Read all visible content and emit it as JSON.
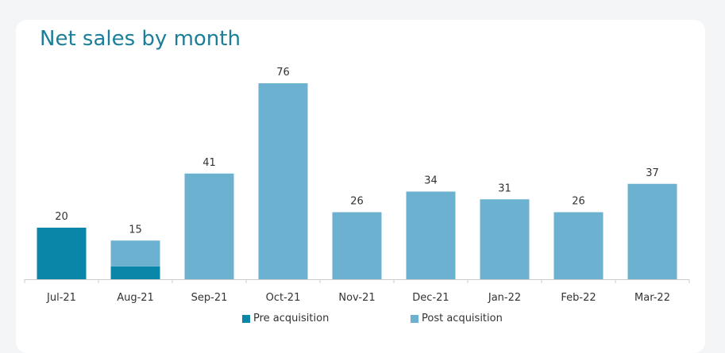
{
  "chart_data": {
    "type": "bar",
    "stacked": true,
    "title": "Net sales by month",
    "categories": [
      "Jul-21",
      "Aug-21",
      "Sep-21",
      "Oct-21",
      "Nov-21",
      "Dec-21",
      "Jan-22",
      "Feb-22",
      "Mar-22"
    ],
    "series": [
      {
        "name": "Pre acquisition",
        "color": "#0a86a8",
        "values": [
          20,
          5,
          0,
          0,
          0,
          0,
          0,
          0,
          0
        ]
      },
      {
        "name": "Post acquisition",
        "color": "#6cb1cf",
        "values": [
          0,
          10,
          41,
          76,
          26,
          34,
          31,
          26,
          37
        ]
      }
    ],
    "totals": [
      20,
      15,
      41,
      76,
      26,
      34,
      31,
      26,
      37
    ],
    "ylim": [
      0,
      80
    ],
    "grid": false,
    "legend": "bottom"
  }
}
